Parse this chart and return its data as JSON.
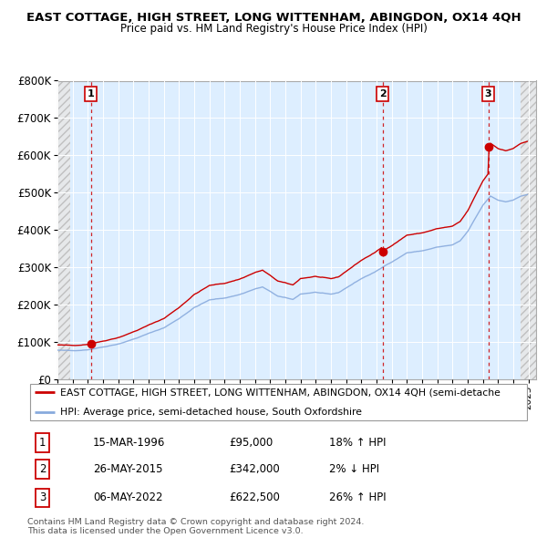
{
  "title1": "EAST COTTAGE, HIGH STREET, LONG WITTENHAM, ABINGDON, OX14 4QH",
  "title2": "Price paid vs. HM Land Registry's House Price Index (HPI)",
  "legend_line1": "EAST COTTAGE, HIGH STREET, LONG WITTENHAM, ABINGDON, OX14 4QH (semi-detache",
  "legend_line2": "HPI: Average price, semi-detached house, South Oxfordshire",
  "sale_color": "#cc0000",
  "hpi_color": "#88aadd",
  "purchase_color": "#cc0000",
  "purchases": [
    {
      "date_year": 1996.21,
      "price": 95000,
      "label": "1"
    },
    {
      "date_year": 2015.4,
      "price": 342000,
      "label": "2"
    },
    {
      "date_year": 2022.35,
      "price": 622500,
      "label": "3"
    }
  ],
  "table_rows": [
    {
      "label": "1",
      "date": "15-MAR-1996",
      "price": "£95,000",
      "hpi": "18% ↑ HPI"
    },
    {
      "label": "2",
      "date": "26-MAY-2015",
      "price": "£342,000",
      "hpi": "2% ↓ HPI"
    },
    {
      "label": "3",
      "date": "06-MAY-2022",
      "price": "£622,500",
      "hpi": "26% ↑ HPI"
    }
  ],
  "footer": "Contains HM Land Registry data © Crown copyright and database right 2024.\nThis data is licensed under the Open Government Licence v3.0.",
  "ylim": [
    0,
    800000
  ],
  "xlim_start": 1994,
  "xlim_end": 2025.5,
  "yticks": [
    0,
    100000,
    200000,
    300000,
    400000,
    500000,
    600000,
    700000,
    800000
  ],
  "ytick_labels": [
    "£0",
    "£100K",
    "£200K",
    "£300K",
    "£400K",
    "£500K",
    "£600K",
    "£700K",
    "£800K"
  ],
  "bg_color": "#ffffff",
  "plot_bg": "#ddeeff",
  "grid_color": "#ffffff",
  "dashed_line_color": "#cc0000",
  "label_box_color": "#cc0000"
}
